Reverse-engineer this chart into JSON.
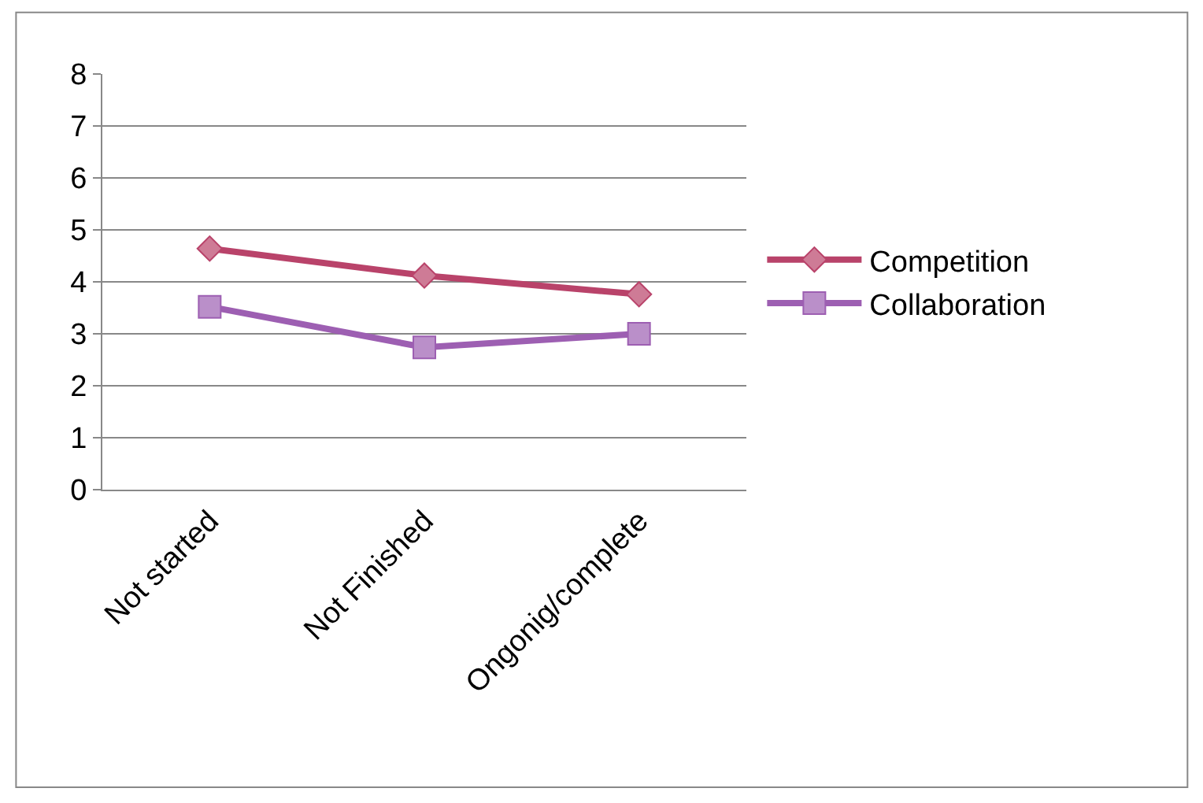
{
  "chart_data": {
    "type": "line",
    "categories": [
      "Not started",
      "Not Finished",
      "Ongonig/complete"
    ],
    "series": [
      {
        "name": "Competition",
        "color": "#b9436a",
        "marker": "diamond",
        "values": [
          4.64,
          4.12,
          3.76
        ]
      },
      {
        "name": "Collaboration",
        "color": "#9d5fb2",
        "marker": "square",
        "values": [
          3.52,
          2.74,
          3.0
        ]
      }
    ],
    "ylim": [
      0,
      8
    ],
    "yticks": [
      0,
      1,
      2,
      3,
      4,
      5,
      6,
      7,
      8
    ],
    "grid": "y",
    "legend": "right",
    "line_style": "solid"
  }
}
